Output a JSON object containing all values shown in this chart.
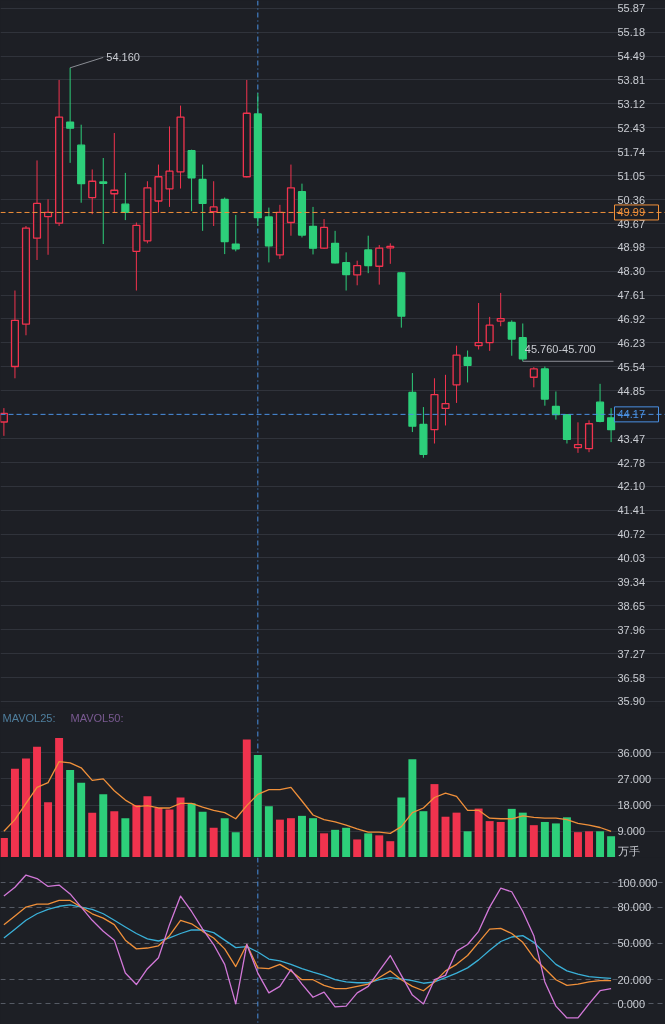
{
  "chart_data": [
    {
      "type": "candlestick",
      "categories": [
        null,
        null,
        null,
        null,
        null,
        null,
        null,
        null,
        null,
        null,
        null,
        null,
        null,
        null,
        null,
        null,
        null,
        null,
        null,
        null,
        null,
        null,
        null,
        null,
        null,
        null,
        null,
        null,
        null,
        null,
        null,
        null,
        null,
        null,
        null,
        null,
        null,
        null,
        null,
        null,
        null,
        null,
        null,
        null,
        null,
        null,
        null,
        null,
        null,
        null,
        null,
        null,
        null,
        null,
        null,
        null
      ],
      "ohlc": [
        [
          43.95,
          44.35,
          43.55,
          44.2
        ],
        [
          45.55,
          47.74,
          45.21,
          46.88
        ],
        [
          46.77,
          49.6,
          46.45,
          49.54
        ],
        [
          49.25,
          51.49,
          48.62,
          50.25
        ],
        [
          49.87,
          50.37,
          48.77,
          49.99
        ],
        [
          49.68,
          53.81,
          49.6,
          52.74
        ],
        [
          52.59,
          54.16,
          51.42,
          52.42
        ],
        [
          51.93,
          52.52,
          50.27,
          50.82
        ],
        [
          50.42,
          51.23,
          49.94,
          50.89
        ],
        [
          50.87,
          51.56,
          49.08,
          50.83
        ],
        [
          50.53,
          52.28,
          49.99,
          50.63
        ],
        [
          50.23,
          51.13,
          49.77,
          49.99
        ],
        [
          48.87,
          49.7,
          47.74,
          49.62
        ],
        [
          49.17,
          50.89,
          49.1,
          50.7
        ],
        [
          50.32,
          51.37,
          49.99,
          51.02
        ],
        [
          50.67,
          52.47,
          50.15,
          51.18
        ],
        [
          51.16,
          53.07,
          50.68,
          52.74
        ],
        [
          51.77,
          51.8,
          50.03,
          50.99
        ],
        [
          50.94,
          51.37,
          49.46,
          50.25
        ],
        [
          50.01,
          50.89,
          49.6,
          50.15
        ],
        [
          50.37,
          50.42,
          48.79,
          49.15
        ],
        [
          49.08,
          49.92,
          48.87,
          48.94
        ],
        [
          51.02,
          53.81,
          51.0,
          52.85
        ],
        [
          52.83,
          53.43,
          49.6,
          49.84
        ],
        [
          49.86,
          50.13,
          48.55,
          49.03
        ],
        [
          48.77,
          50.21,
          48.65,
          49.99
        ],
        [
          49.7,
          51.37,
          49.32,
          50.7
        ],
        [
          50.59,
          50.82,
          49.27,
          49.34
        ],
        [
          49.59,
          50.15,
          48.78,
          48.96
        ],
        [
          48.96,
          49.8,
          48.94,
          49.56
        ],
        [
          49.1,
          49.46,
          48.52,
          48.54
        ],
        [
          48.54,
          48.84,
          47.74,
          48.2
        ],
        [
          48.19,
          48.6,
          47.89,
          48.46
        ],
        [
          48.91,
          49.32,
          48.24,
          48.46
        ],
        [
          48.44,
          49.05,
          47.91,
          48.96
        ],
        [
          48.97,
          49.1,
          48.51,
          49.01
        ],
        [
          48.25,
          48.27,
          46.67,
          47.0
        ],
        [
          44.8,
          45.36,
          43.66,
          43.83
        ],
        [
          43.88,
          44.38,
          42.92,
          43.02
        ],
        [
          43.73,
          45.21,
          43.33,
          44.74
        ],
        [
          44.34,
          45.31,
          43.85,
          44.48
        ],
        [
          45.02,
          46.15,
          44.5,
          45.88
        ],
        [
          45.81,
          46.01,
          45.09,
          45.58
        ],
        [
          46.15,
          47.38,
          46.04,
          46.24
        ],
        [
          46.24,
          46.98,
          46.0,
          46.74
        ],
        [
          46.86,
          47.67,
          46.71,
          46.93
        ],
        [
          46.82,
          46.88,
          45.86,
          46.34
        ],
        [
          46.38,
          46.79,
          45.7,
          45.77
        ],
        [
          45.24,
          45.53,
          44.95,
          45.48
        ],
        [
          45.48,
          45.55,
          44.42,
          44.61
        ],
        [
          44.4,
          44.83,
          44.02,
          44.16
        ],
        [
          44.16,
          44.16,
          43.33,
          43.45
        ],
        [
          43.21,
          43.94,
          43.06,
          43.3
        ],
        [
          43.18,
          44.0,
          43.08,
          43.9
        ],
        [
          44.52,
          45.05,
          43.94,
          43.97
        ],
        [
          44.07,
          44.35,
          43.37,
          43.73
        ]
      ],
      "colors": [
        "#f0334e",
        "#f0334e",
        "#f0334e",
        "#f0334e",
        "#f0334e",
        "#f0334e",
        "#2dcf7a",
        "#2dcf7a",
        "#f0334e",
        "#2dcf7a",
        "#f0334e",
        "#2dcf7a",
        "#f0334e",
        "#f0334e",
        "#f0334e",
        "#f0334e",
        "#f0334e",
        "#2dcf7a",
        "#2dcf7a",
        "#f0334e",
        "#2dcf7a",
        "#2dcf7a",
        "#f0334e",
        "#2dcf7a",
        "#2dcf7a",
        "#f0334e",
        "#f0334e",
        "#2dcf7a",
        "#2dcf7a",
        "#f0334e",
        "#2dcf7a",
        "#2dcf7a",
        "#f0334e",
        "#2dcf7a",
        "#f0334e",
        "#f0334e",
        "#2dcf7a",
        "#2dcf7a",
        "#2dcf7a",
        "#f0334e",
        "#f0334e",
        "#f0334e",
        "#2dcf7a",
        "#f0334e",
        "#f0334e",
        "#f0334e",
        "#2dcf7a",
        "#2dcf7a",
        "#f0334e",
        "#2dcf7a",
        "#2dcf7a",
        "#2dcf7a",
        "#f0334e",
        "#f0334e",
        "#2dcf7a",
        "#2dcf7a"
      ],
      "ylim": [
        35.72,
        56.1
      ],
      "yticks": [
        55.87,
        55.18,
        54.49,
        53.81,
        53.12,
        52.43,
        51.74,
        51.05,
        50.36,
        49.67,
        48.98,
        {
          "value": 48.3,
          "label": "48.30"
        },
        47.61,
        46.92,
        46.23,
        45.54,
        44.85,
        43.47,
        42.78,
        {
          "value": 42.1,
          "label": "42.10"
        },
        41.41,
        40.72,
        40.03,
        39.34,
        38.65,
        37.96,
        37.27,
        36.58,
        {
          "value": 35.9,
          "label": "35.90"
        }
      ],
      "grid": "y",
      "tick_labels": "y",
      "ref_lines": [
        {
          "axis": "y",
          "value": 49.99,
          "label": "49.99",
          "color": "#f0903a",
          "line_style": "dashed"
        },
        {
          "axis": "y",
          "value": 44.17,
          "label": "44.17",
          "color": "#4a90e2",
          "line_style": "dashed"
        }
      ],
      "annotations": [
        "54.160",
        "45.760-45.700"
      ]
    },
    {
      "type": "bar",
      "categories": [
        null,
        null,
        null,
        null,
        null,
        null,
        null,
        null,
        null,
        null,
        null,
        null,
        null,
        null,
        null,
        null,
        null,
        null,
        null,
        null,
        null,
        null,
        null,
        null,
        null,
        null,
        null,
        null,
        null,
        null,
        null,
        null,
        null,
        null,
        null,
        null,
        null,
        null,
        null,
        null,
        null,
        null,
        null,
        null,
        null,
        null,
        null,
        null,
        null,
        null,
        null,
        null,
        null,
        null,
        null,
        null
      ],
      "series": [
        {
          "type": "bar",
          "values": [
            6.7,
            30.5,
            34,
            38,
            19,
            41,
            30,
            25.7,
            15.4,
            21.7,
            15.9,
            13.5,
            18,
            21,
            17,
            16.5,
            20.6,
            18.6,
            15.7,
            10.2,
            13.5,
            8.7,
            40.5,
            35.2,
            17.6,
            13,
            13.5,
            14.3,
            13.5,
            8.3,
            9.5,
            10.2,
            6.2,
            8.3,
            7.6,
            5.6,
            20.6,
            33.7,
            15.9,
            25.2,
            14,
            15.4,
            9,
            16.8,
            12.5,
            12.2,
            16.7,
            15.4,
            11.1,
            12.2,
            11.7,
            13.8,
            8.7,
            9,
            9,
            7.3
          ],
          "colors": [
            "#f0334e",
            "#f0334e",
            "#f0334e",
            "#f0334e",
            "#f0334e",
            "#f0334e",
            "#2dcf7a",
            "#2dcf7a",
            "#f0334e",
            "#2dcf7a",
            "#f0334e",
            "#2dcf7a",
            "#f0334e",
            "#f0334e",
            "#f0334e",
            "#f0334e",
            "#f0334e",
            "#2dcf7a",
            "#2dcf7a",
            "#f0334e",
            "#2dcf7a",
            "#2dcf7a",
            "#f0334e",
            "#2dcf7a",
            "#2dcf7a",
            "#f0334e",
            "#f0334e",
            "#2dcf7a",
            "#2dcf7a",
            "#f0334e",
            "#2dcf7a",
            "#2dcf7a",
            "#f0334e",
            "#2dcf7a",
            "#f0334e",
            "#f0334e",
            "#2dcf7a",
            "#2dcf7a",
            "#2dcf7a",
            "#f0334e",
            "#f0334e",
            "#f0334e",
            "#2dcf7a",
            "#f0334e",
            "#f0334e",
            "#f0334e",
            "#2dcf7a",
            "#2dcf7a",
            "#f0334e",
            "#2dcf7a",
            "#2dcf7a",
            "#2dcf7a",
            "#f0334e",
            "#f0334e",
            "#2dcf7a",
            "#2dcf7a"
          ]
        },
        {
          "type": "line",
          "color": "#f0903a",
          "values": [
            9.0,
            13.0,
            18.6,
            24.1,
            25.7,
            32.9,
            32.5,
            30.8,
            26.5,
            27.0,
            22.9,
            19.7,
            17.5,
            17.8,
            17.0,
            17.0,
            18.6,
            18.6,
            17.3,
            16.2,
            15.4,
            13.3,
            17.8,
            21.7,
            23.3,
            23.3,
            24.1,
            19.4,
            14.6,
            13.0,
            12.2,
            11.1,
            9.8,
            8.7,
            8.7,
            8.3,
            10.6,
            15.4,
            17.0,
            20.6,
            22.1,
            21.0,
            16.2,
            16.2,
            13.5,
            13.3,
            13.3,
            14.3,
            13.8,
            13.5,
            13.5,
            13.0,
            11.7,
            11.1,
            10.3,
            9.0
          ]
        }
      ],
      "ylim": [
        0,
        51.5
      ],
      "yticks": [
        {
          "value": 9,
          "label": "9.000"
        },
        {
          "value": 18,
          "label": "18.000"
        },
        {
          "value": 27,
          "label": "27.000"
        },
        {
          "value": 36,
          "label": "36.000"
        }
      ],
      "ylabel": "万手",
      "grid": "y",
      "tick_labels": "y",
      "annotations": [
        "MAVOL25:",
        "MAVOL50:"
      ]
    },
    {
      "type": "line",
      "categories": [
        null,
        null,
        null,
        null,
        null,
        null,
        null,
        null,
        null,
        null,
        null,
        null,
        null,
        null,
        null,
        null,
        null,
        null,
        null,
        null,
        null,
        null,
        null,
        null,
        null,
        null,
        null,
        null,
        null,
        null,
        null,
        null,
        null,
        null,
        null,
        null,
        null,
        null,
        null,
        null,
        null,
        null,
        null,
        null,
        null,
        null,
        null,
        null,
        null,
        null,
        null,
        null,
        null,
        null,
        null,
        null
      ],
      "series": [
        {
          "color": "#3ab0d8",
          "values": [
            54.5,
            61.8,
            69.1,
            74.5,
            78.2,
            80.7,
            81.8,
            80,
            78.2,
            74.5,
            69.1,
            63.6,
            58.2,
            53.8,
            52,
            54.5,
            58.2,
            61.1,
            61.1,
            58.9,
            52.7,
            46.5,
            47.3,
            42.9,
            37.1,
            35.6,
            32.7,
            29.1,
            26.2,
            23.6,
            20,
            18.2,
            17.5,
            17.5,
            20,
            21.8,
            20.7,
            19.3,
            17.1,
            18.2,
            21.8,
            25.5,
            29.8,
            36.4,
            44.4,
            51.6,
            55.3,
            56.4,
            50.9,
            41.8,
            32.7,
            27.3,
            24.7,
            22.5,
            21.8,
            21.1
          ]
        },
        {
          "color": "#f0903a",
          "values": [
            65.5,
            72.7,
            80,
            82.5,
            82.5,
            85.5,
            85.5,
            80,
            74.5,
            70.9,
            65.5,
            52.7,
            45.5,
            46.2,
            48,
            56.4,
            69.1,
            66.2,
            60,
            54.5,
            45.5,
            30.9,
            49.1,
            29.8,
            29.1,
            32.7,
            27.3,
            20,
            20,
            15.3,
            12.7,
            12.7,
            14.5,
            16.4,
            21.8,
            27.3,
            20,
            14.5,
            10.9,
            18.2,
            27.3,
            32.7,
            40,
            50.9,
            61.8,
            62.5,
            58.2,
            50.9,
            38.2,
            29.1,
            20,
            15.3,
            16.4,
            18.2,
            19.3,
            19.3
          ]
        },
        {
          "color": "#d278d8",
          "values": [
            89.1,
            96.4,
            106.5,
            103.6,
            97.1,
            98.2,
            90.9,
            80,
            69.1,
            60,
            52.7,
            25.5,
            16,
            29.1,
            38.2,
            65.5,
            89.1,
            76.4,
            61.8,
            49.1,
            32.7,
            0,
            49.1,
            25.5,
            9.1,
            14.5,
            28.4,
            16.4,
            5.5,
            9.8,
            -2.5,
            -1.8,
            9.1,
            14.5,
            27.3,
            40,
            23.6,
            7.3,
            0,
            20,
            23.6,
            43.6,
            49.1,
            60,
            80,
            95.6,
            92.7,
            76.4,
            56.4,
            18.2,
            -1.8,
            -11.6,
            -11.6,
            0,
            10.9,
            12.7
          ]
        }
      ],
      "ylim": [
        -17,
        121
      ],
      "yticks": [
        {
          "value": 0,
          "label": "0.000"
        },
        {
          "value": 20,
          "label": "20.000"
        },
        {
          "value": 50,
          "label": "50.000"
        },
        {
          "value": 80,
          "label": "80.000"
        },
        {
          "value": 100,
          "label": "100.000"
        }
      ],
      "grid": "y",
      "tick_labels": "y"
    }
  ]
}
